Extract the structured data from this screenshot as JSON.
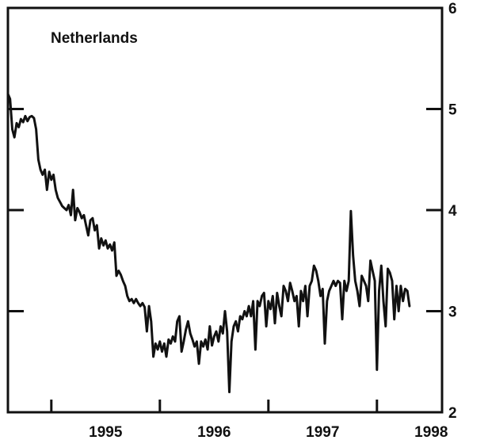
{
  "chart_data": {
    "type": "line",
    "title": "Netherlands",
    "xlabel": "",
    "ylabel": "",
    "x_ticks": [
      "1995",
      "1996",
      "1997",
      "1998"
    ],
    "y_ticks": [
      "2",
      "3",
      "4",
      "5",
      "6"
    ],
    "xlim": [
      1994.6,
      1998.6
    ],
    "ylim": [
      2,
      6
    ],
    "grid": false,
    "legend": "none",
    "line_color": "#111111",
    "series": [
      {
        "values": [
          [
            1994.6,
            5.15
          ],
          [
            1994.62,
            5.1
          ],
          [
            1994.64,
            4.8
          ],
          [
            1994.66,
            4.72
          ],
          [
            1994.68,
            4.86
          ],
          [
            1994.7,
            4.82
          ],
          [
            1994.72,
            4.9
          ],
          [
            1994.74,
            4.87
          ],
          [
            1994.76,
            4.93
          ],
          [
            1994.78,
            4.88
          ],
          [
            1994.8,
            4.92
          ],
          [
            1994.82,
            4.93
          ],
          [
            1994.84,
            4.91
          ],
          [
            1994.86,
            4.8
          ],
          [
            1994.88,
            4.5
          ],
          [
            1994.9,
            4.4
          ],
          [
            1994.92,
            4.35
          ],
          [
            1994.94,
            4.4
          ],
          [
            1994.96,
            4.2
          ],
          [
            1994.98,
            4.38
          ],
          [
            1995.0,
            4.3
          ],
          [
            1995.02,
            4.35
          ],
          [
            1995.04,
            4.2
          ],
          [
            1995.06,
            4.12
          ],
          [
            1995.08,
            4.08
          ],
          [
            1995.1,
            4.04
          ],
          [
            1995.12,
            4.02
          ],
          [
            1995.14,
            4.0
          ],
          [
            1995.16,
            4.05
          ],
          [
            1995.18,
            3.95
          ],
          [
            1995.2,
            4.2
          ],
          [
            1995.22,
            3.9
          ],
          [
            1995.24,
            4.02
          ],
          [
            1995.26,
            3.98
          ],
          [
            1995.28,
            3.92
          ],
          [
            1995.3,
            3.95
          ],
          [
            1995.32,
            3.85
          ],
          [
            1995.34,
            3.75
          ],
          [
            1995.36,
            3.9
          ],
          [
            1995.38,
            3.92
          ],
          [
            1995.4,
            3.8
          ],
          [
            1995.42,
            3.85
          ],
          [
            1995.44,
            3.62
          ],
          [
            1995.46,
            3.72
          ],
          [
            1995.48,
            3.65
          ],
          [
            1995.5,
            3.7
          ],
          [
            1995.52,
            3.62
          ],
          [
            1995.54,
            3.66
          ],
          [
            1995.56,
            3.6
          ],
          [
            1995.58,
            3.68
          ],
          [
            1995.6,
            3.35
          ],
          [
            1995.62,
            3.4
          ],
          [
            1995.64,
            3.36
          ],
          [
            1995.66,
            3.3
          ],
          [
            1995.68,
            3.25
          ],
          [
            1995.7,
            3.15
          ],
          [
            1995.72,
            3.1
          ],
          [
            1995.74,
            3.12
          ],
          [
            1995.76,
            3.08
          ],
          [
            1995.78,
            3.12
          ],
          [
            1995.8,
            3.08
          ],
          [
            1995.82,
            3.05
          ],
          [
            1995.84,
            3.08
          ],
          [
            1995.86,
            3.04
          ],
          [
            1995.88,
            2.8
          ],
          [
            1995.9,
            3.05
          ],
          [
            1995.92,
            2.9
          ],
          [
            1995.94,
            2.55
          ],
          [
            1995.96,
            2.68
          ],
          [
            1995.98,
            2.62
          ],
          [
            1996.0,
            2.7
          ],
          [
            1996.02,
            2.6
          ],
          [
            1996.04,
            2.68
          ],
          [
            1996.06,
            2.55
          ],
          [
            1996.08,
            2.72
          ],
          [
            1996.1,
            2.68
          ],
          [
            1996.12,
            2.75
          ],
          [
            1996.14,
            2.7
          ],
          [
            1996.16,
            2.9
          ],
          [
            1996.18,
            2.95
          ],
          [
            1996.2,
            2.6
          ],
          [
            1996.22,
            2.7
          ],
          [
            1996.24,
            2.82
          ],
          [
            1996.26,
            2.9
          ],
          [
            1996.28,
            2.78
          ],
          [
            1996.3,
            2.72
          ],
          [
            1996.32,
            2.65
          ],
          [
            1996.34,
            2.7
          ],
          [
            1996.36,
            2.48
          ],
          [
            1996.38,
            2.7
          ],
          [
            1996.4,
            2.65
          ],
          [
            1996.42,
            2.72
          ],
          [
            1996.44,
            2.62
          ],
          [
            1996.46,
            2.85
          ],
          [
            1996.48,
            2.66
          ],
          [
            1996.5,
            2.75
          ],
          [
            1996.52,
            2.8
          ],
          [
            1996.54,
            2.7
          ],
          [
            1996.56,
            2.85
          ],
          [
            1996.58,
            2.78
          ],
          [
            1996.6,
            3.0
          ],
          [
            1996.62,
            2.8
          ],
          [
            1996.64,
            2.2
          ],
          [
            1996.66,
            2.7
          ],
          [
            1996.68,
            2.85
          ],
          [
            1996.7,
            2.9
          ],
          [
            1996.72,
            2.8
          ],
          [
            1996.74,
            2.95
          ],
          [
            1996.76,
            2.92
          ],
          [
            1996.78,
            3.0
          ],
          [
            1996.8,
            2.95
          ],
          [
            1996.82,
            3.05
          ],
          [
            1996.84,
            2.95
          ],
          [
            1996.86,
            3.1
          ],
          [
            1996.88,
            2.62
          ],
          [
            1996.9,
            3.1
          ],
          [
            1996.92,
            3.05
          ],
          [
            1996.94,
            3.15
          ],
          [
            1996.96,
            3.18
          ],
          [
            1996.98,
            2.85
          ],
          [
            1997.0,
            3.1
          ],
          [
            1997.02,
            3.02
          ],
          [
            1997.04,
            3.15
          ],
          [
            1997.06,
            2.88
          ],
          [
            1997.08,
            3.18
          ],
          [
            1997.1,
            3.05
          ],
          [
            1997.12,
            2.95
          ],
          [
            1997.14,
            3.25
          ],
          [
            1997.16,
            3.2
          ],
          [
            1997.18,
            3.1
          ],
          [
            1997.2,
            3.28
          ],
          [
            1997.22,
            3.2
          ],
          [
            1997.24,
            3.1
          ],
          [
            1997.26,
            3.15
          ],
          [
            1997.28,
            2.85
          ],
          [
            1997.3,
            3.2
          ],
          [
            1997.32,
            3.1
          ],
          [
            1997.34,
            3.25
          ],
          [
            1997.36,
            2.95
          ],
          [
            1997.38,
            3.25
          ],
          [
            1997.4,
            3.3
          ],
          [
            1997.42,
            3.45
          ],
          [
            1997.44,
            3.4
          ],
          [
            1997.46,
            3.3
          ],
          [
            1997.48,
            3.15
          ],
          [
            1997.5,
            3.22
          ],
          [
            1997.52,
            2.68
          ],
          [
            1997.54,
            3.1
          ],
          [
            1997.56,
            3.2
          ],
          [
            1997.58,
            3.25
          ],
          [
            1997.6,
            3.3
          ],
          [
            1997.62,
            3.25
          ],
          [
            1997.64,
            3.3
          ],
          [
            1997.66,
            3.28
          ],
          [
            1997.68,
            2.92
          ],
          [
            1997.7,
            3.3
          ],
          [
            1997.72,
            3.2
          ],
          [
            1997.74,
            3.3
          ],
          [
            1997.76,
            3.99
          ],
          [
            1997.78,
            3.55
          ],
          [
            1997.8,
            3.3
          ],
          [
            1997.82,
            3.2
          ],
          [
            1997.84,
            3.05
          ],
          [
            1997.86,
            3.35
          ],
          [
            1997.88,
            3.3
          ],
          [
            1997.9,
            3.25
          ],
          [
            1997.92,
            3.1
          ],
          [
            1997.94,
            3.5
          ],
          [
            1997.96,
            3.4
          ],
          [
            1997.98,
            3.3
          ],
          [
            1998.0,
            2.42
          ],
          [
            1998.02,
            3.2
          ],
          [
            1998.04,
            3.45
          ],
          [
            1998.06,
            3.1
          ],
          [
            1998.08,
            2.85
          ],
          [
            1998.1,
            3.42
          ],
          [
            1998.12,
            3.38
          ],
          [
            1998.14,
            3.3
          ],
          [
            1998.16,
            2.92
          ],
          [
            1998.18,
            3.25
          ],
          [
            1998.2,
            3.0
          ],
          [
            1998.22,
            3.25
          ],
          [
            1998.24,
            3.1
          ],
          [
            1998.26,
            3.22
          ],
          [
            1998.28,
            3.2
          ],
          [
            1998.3,
            3.05
          ]
        ]
      }
    ]
  }
}
